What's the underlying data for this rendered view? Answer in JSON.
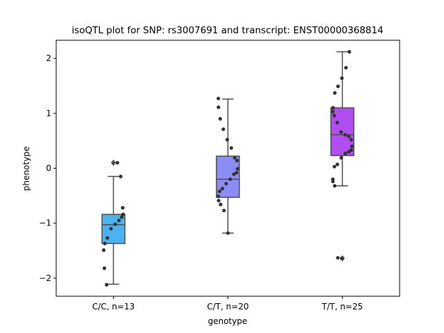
{
  "chart_data": {
    "type": "box",
    "title": "isoQTL plot for SNP: rs3007691 and transcript: ENST00000368814",
    "xlabel": "genotype",
    "ylabel": "phenotype",
    "ylim": [
      -2.33,
      2.33
    ],
    "yticks": [
      -2,
      -1,
      0,
      1,
      2
    ],
    "ytick_labels": [
      "−2",
      "−1",
      "0",
      "1",
      "2"
    ],
    "grid": false,
    "categories": [
      "C/C, n=13",
      "C/T, n=20",
      "T/T, n=25"
    ],
    "colors": [
      "#4db3f0",
      "#8c8cf7",
      "#b04ef2"
    ],
    "boxes": [
      {
        "q1": -1.37,
        "median": -1.03,
        "q3": -0.84,
        "whisker_low": -2.11,
        "whisker_high": -0.15,
        "outliers": [
          0.1
        ]
      },
      {
        "q1": -0.53,
        "median": -0.2,
        "q3": 0.22,
        "whisker_low": -1.18,
        "whisker_high": 1.26,
        "outliers": []
      },
      {
        "q1": 0.23,
        "median": 0.61,
        "q3": 1.1,
        "whisker_low": -0.32,
        "whisker_high": 2.12,
        "outliers": [
          -1.64
        ]
      }
    ],
    "points": [
      [
        0.1,
        -0.15,
        -0.72,
        -0.84,
        -0.89,
        -0.95,
        -1.02,
        -1.1,
        -1.27,
        -1.37,
        -1.49,
        -1.82,
        -2.12
      ],
      [
        1.27,
        1.11,
        0.9,
        0.71,
        0.52,
        0.37,
        0.19,
        0.14,
        -0.01,
        -0.08,
        -0.11,
        -0.2,
        -0.28,
        -0.37,
        -0.42,
        -0.51,
        -0.59,
        -0.66,
        -0.77,
        -1.18
      ],
      [
        2.12,
        1.83,
        1.64,
        1.49,
        1.37,
        1.1,
        1.03,
        0.96,
        0.83,
        0.66,
        0.61,
        0.58,
        0.52,
        0.4,
        0.33,
        0.3,
        0.27,
        0.19,
        0.07,
        0.03,
        -0.2,
        -0.24,
        -0.32,
        -1.63,
        -1.64
      ]
    ]
  }
}
